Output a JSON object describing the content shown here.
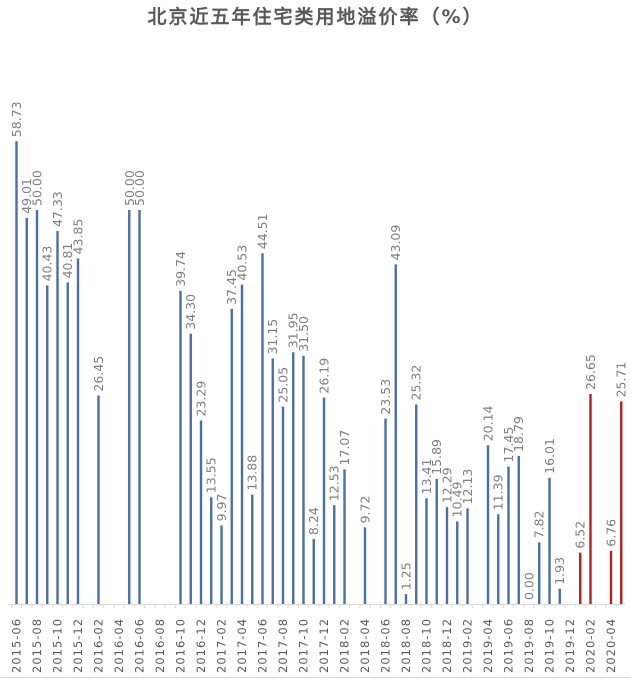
{
  "chart_data": {
    "type": "bar",
    "title": "北京近五年住宅类用地溢价率（%）",
    "xlabel": "",
    "ylabel": "",
    "ylim": [
      0,
      60
    ],
    "grid": false,
    "legend": "none",
    "categories": [
      "2015-06",
      "2015-07",
      "2015-08",
      "2015-09",
      "2015-10",
      "2015-11",
      "2015-12",
      "2016-01",
      "2016-02",
      "2016-03",
      "2016-04",
      "2016-05",
      "2016-06",
      "2016-07",
      "2016-08",
      "2016-09",
      "2016-10",
      "2016-11",
      "2016-12",
      "2017-01",
      "2017-02",
      "2017-03",
      "2017-04",
      "2017-05",
      "2017-06",
      "2017-07",
      "2017-08",
      "2017-09",
      "2017-10",
      "2017-11",
      "2017-12",
      "2018-01",
      "2018-02",
      "2018-03",
      "2018-04",
      "2018-05",
      "2018-06",
      "2018-07",
      "2018-08",
      "2018-09",
      "2018-10",
      "2018-11",
      "2018-12",
      "2019-01",
      "2019-02",
      "2019-03",
      "2019-04",
      "2019-05",
      "2019-06",
      "2019-07",
      "2019-08",
      "2019-09",
      "2019-10",
      "2019-11",
      "2019-12",
      "2020-01",
      "2020-02",
      "2020-03",
      "2020-04",
      "2020-05"
    ],
    "tick_labels": [
      "2015-06",
      "2015-08",
      "2015-10",
      "2015-12",
      "2016-02",
      "2016-04",
      "2016-06",
      "2016-08",
      "2016-10",
      "2016-12",
      "2017-02",
      "2017-04",
      "2017-06",
      "2017-08",
      "2017-10",
      "2017-12",
      "2018-02",
      "2018-04",
      "2018-06",
      "2018-08",
      "2018-10",
      "2018-12",
      "2019-02",
      "2019-04",
      "2019-06",
      "2019-08",
      "2019-10",
      "2019-12",
      "2020-02",
      "2020-04"
    ],
    "values": [
      58.73,
      49.01,
      50.0,
      40.43,
      47.33,
      40.81,
      43.85,
      null,
      26.45,
      null,
      null,
      50.0,
      50.0,
      null,
      null,
      null,
      39.74,
      34.3,
      23.29,
      13.55,
      9.97,
      37.45,
      40.53,
      13.88,
      44.51,
      31.15,
      25.05,
      31.95,
      31.5,
      8.24,
      26.19,
      12.53,
      17.07,
      null,
      9.72,
      null,
      23.53,
      43.09,
      1.25,
      25.32,
      13.41,
      15.89,
      12.29,
      10.49,
      12.13,
      null,
      20.14,
      11.39,
      17.45,
      18.79,
      0.0,
      7.82,
      16.01,
      1.93,
      null,
      6.52,
      26.65,
      null,
      6.76,
      25.71
    ],
    "value_labels": [
      "58.73",
      "49.01",
      "50.00",
      "40.43",
      "47.33",
      "40.81",
      "43.85",
      "",
      "26.45",
      "",
      "",
      "50.00",
      "50.00",
      "",
      "",
      "",
      "39.74",
      "34.30",
      "23.29",
      "13.55",
      "9.97",
      "37.45",
      "40.53",
      "13.88",
      "44.51",
      "31.15",
      "25.05",
      "31.95",
      "31.50",
      "8.24",
      "26.19",
      "12.53",
      "17.07",
      "",
      "9.72",
      "",
      "23.53",
      "43.09",
      "1.25",
      "25.32",
      "13.41",
      "15.89",
      "12.29",
      "10.49",
      "12.13",
      "",
      "20.14",
      "11.39",
      "17.45",
      "18.79",
      "0.00",
      "7.82",
      "16.01",
      "1.93",
      "",
      "6.52",
      "26.65",
      "",
      "6.76",
      "25.71"
    ],
    "highlight_from": "2020-01",
    "colors": {
      "bar": "#4a6fa5",
      "highlight": "#b22222",
      "label": "#7f7f7f",
      "axis": "#d9d9d9",
      "tick": "#595959"
    }
  }
}
